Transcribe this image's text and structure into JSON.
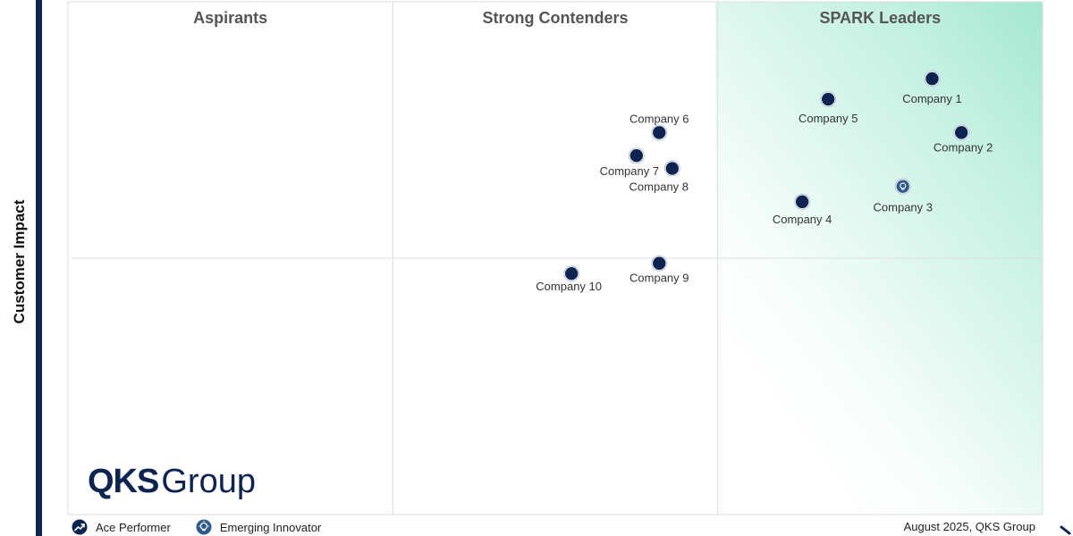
{
  "chart_data": {
    "type": "scatter",
    "title": "",
    "xlabel": "",
    "ylabel": "Customer Impact",
    "xlim": [
      0,
      3
    ],
    "ylim": [
      0,
      2
    ],
    "grid": true,
    "quadrants": [
      {
        "label": "Aspirants",
        "x_range": [
          0,
          1
        ]
      },
      {
        "label": "Strong Contenders",
        "x_range": [
          1,
          2
        ]
      },
      {
        "label": "SPARK Leaders",
        "x_range": [
          2,
          3
        ]
      }
    ],
    "points": [
      {
        "label": "Company 1",
        "x": 2.66,
        "y": 1.7,
        "category": "Ace Performer"
      },
      {
        "label": "Company 2",
        "x": 2.75,
        "y": 1.49,
        "category": "Ace Performer"
      },
      {
        "label": "Company 3",
        "x": 2.57,
        "y": 1.28,
        "category": "Emerging Innovator"
      },
      {
        "label": "Company 4",
        "x": 2.26,
        "y": 1.22,
        "category": "Ace Performer"
      },
      {
        "label": "Company 5",
        "x": 2.34,
        "y": 1.62,
        "category": "Ace Performer"
      },
      {
        "label": "Company 6",
        "x": 1.82,
        "y": 1.49,
        "category": "Ace Performer"
      },
      {
        "label": "Company 7",
        "x": 1.75,
        "y": 1.4,
        "category": "Ace Performer"
      },
      {
        "label": "Company 8",
        "x": 1.86,
        "y": 1.35,
        "category": "Ace Performer"
      },
      {
        "label": "Company 9",
        "x": 1.82,
        "y": 0.98,
        "category": "Ace Performer"
      },
      {
        "label": "Company 10",
        "x": 1.55,
        "y": 0.94,
        "category": "Ace Performer"
      }
    ],
    "legend": [
      {
        "label": "Ace Performer",
        "icon": "trend-arrow-icon"
      },
      {
        "label": "Emerging Innovator",
        "icon": "lightbulb-icon"
      }
    ],
    "legend_position": "bottom-left"
  },
  "logo": {
    "bold": "QKS",
    "light": "Group"
  },
  "footer": {
    "credit": "August 2025, QKS Group"
  },
  "colors": {
    "marker": "#0d2350",
    "innovator_marker": "#2e5a8c",
    "axis_bar": "#0d2350",
    "leader_gradient": "#9fe6cf",
    "grid": "#dddddd"
  }
}
